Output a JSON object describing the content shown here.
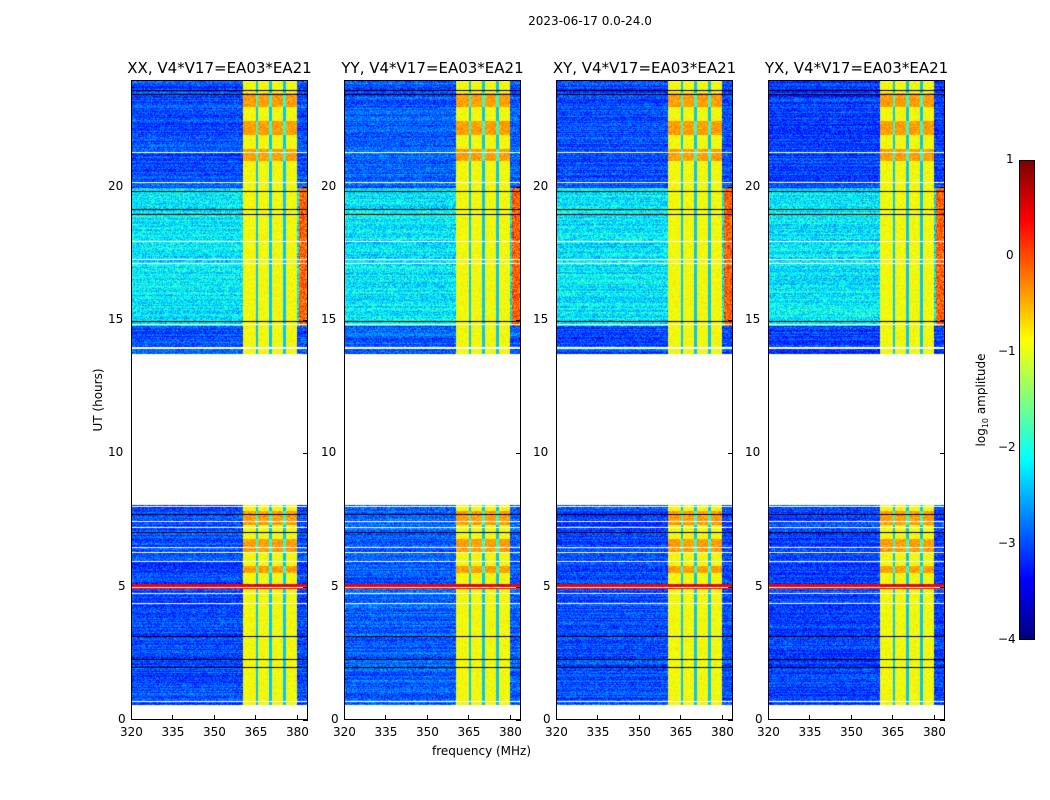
{
  "chart_data": {
    "type": "heatmap",
    "title": "2023-06-17 0.0-24.0",
    "xlabel": "frequency (MHz)",
    "ylabel": "UT (hours)",
    "xlim": [
      320,
      384
    ],
    "ylim": [
      0,
      24
    ],
    "xticks": [
      "320",
      "335",
      "350",
      "365",
      "380"
    ],
    "xtick_values": [
      320,
      335,
      350,
      365,
      380
    ],
    "yticks": [
      "0",
      "5",
      "10",
      "15",
      "20"
    ],
    "ytick_values": [
      0,
      5,
      10,
      15,
      20
    ],
    "panels": [
      {
        "title": "XX, V4*V17=EA03*EA21",
        "base": -3.0
      },
      {
        "title": "YY, V4*V17=EA03*EA21",
        "base": -2.9
      },
      {
        "title": "XY, V4*V17=EA03*EA21",
        "base": -3.0
      },
      {
        "title": "YX, V4*V17=EA03*EA21",
        "base": -3.05
      }
    ],
    "data_time_ranges": [
      [
        0.55,
        8.1
      ],
      [
        13.75,
        24
      ]
    ],
    "elevated_time_range": [
      14.8,
      20.0
    ],
    "elevated_level": -2.2,
    "rfi_band_mhz": [
      360.5,
      380
    ],
    "rfi_band_level": -0.9,
    "rfi_band_notches_mhz": [
      365.5,
      370.5,
      375.5
    ],
    "strong_rfi_time_hours": [
      4.9,
      5.1
    ],
    "colorbar": {
      "label": "log10 amplitude",
      "label_main": "log",
      "label_sub": "10",
      "label_rest": " amplitude",
      "vmin": -4,
      "vmax": 1,
      "ticks": [
        "1",
        "0",
        "−1",
        "−2",
        "−3",
        "−4"
      ],
      "tick_values": [
        1,
        0,
        -1,
        -2,
        -3,
        -4
      ]
    }
  }
}
